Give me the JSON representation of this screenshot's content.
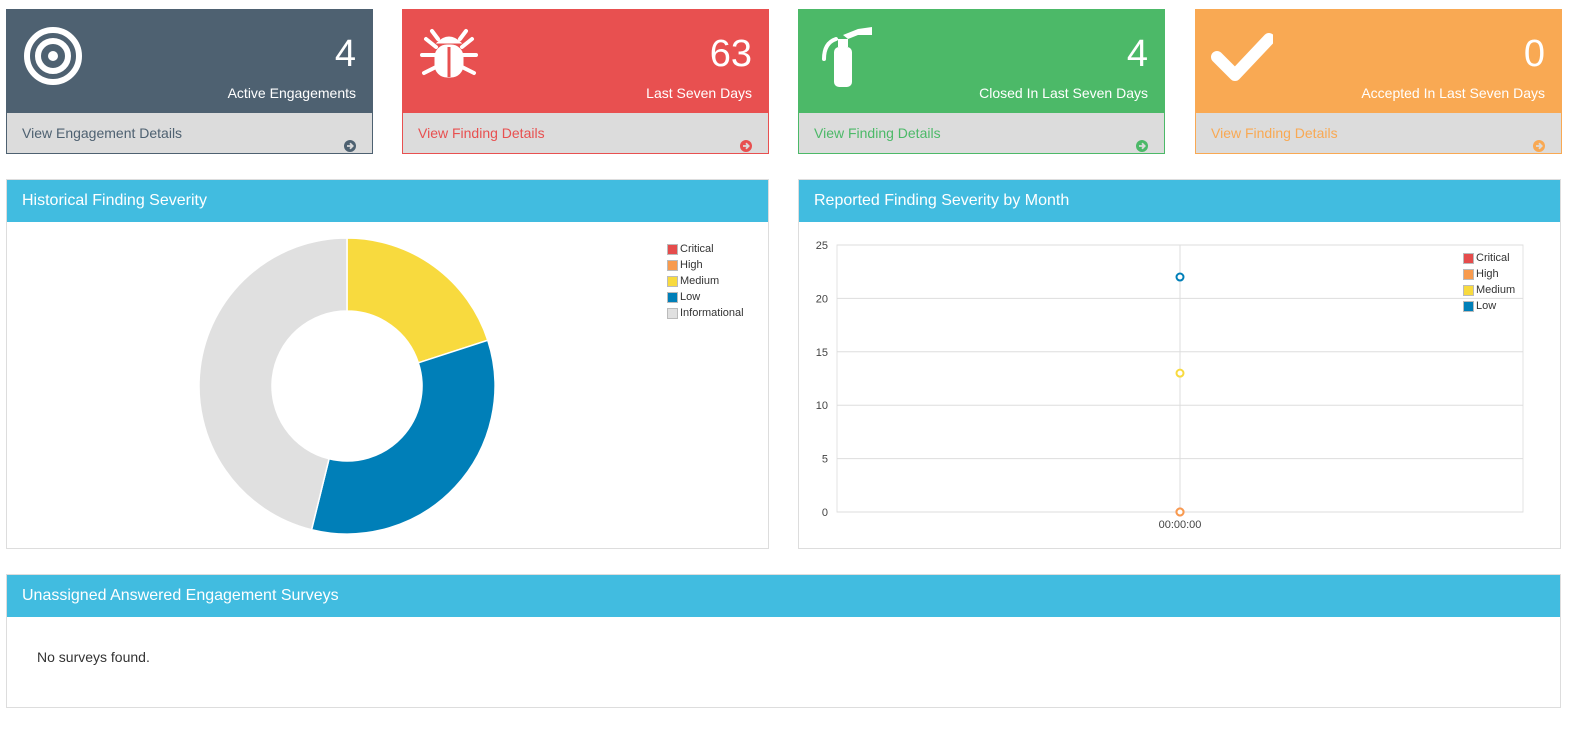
{
  "cards": [
    {
      "name": "active-engagements",
      "number": "4",
      "label": "Active Engagements",
      "link": "View Engagement Details",
      "icon": "target-icon",
      "color": "#4e6171",
      "link_color": "#4e6171"
    },
    {
      "name": "last-seven-days",
      "number": "63",
      "label": "Last Seven Days",
      "link": "View Finding Details",
      "icon": "bug-icon",
      "color": "#e85050",
      "link_color": "#e85050"
    },
    {
      "name": "closed-last-seven-days",
      "number": "4",
      "label": "Closed In Last Seven Days",
      "link": "View Finding Details",
      "icon": "fire-extinguisher-icon",
      "color": "#4cb968",
      "link_color": "#4cb968"
    },
    {
      "name": "accepted-last-seven-days",
      "number": "0",
      "label": "Accepted In Last Seven Days",
      "link": "View Finding Details",
      "icon": "check-icon",
      "color": "#f9a953",
      "link_color": "#f9a953"
    }
  ],
  "historical": {
    "title": "Historical Finding Severity",
    "legend": [
      {
        "label": "Critical",
        "color": "#e54c4c"
      },
      {
        "label": "High",
        "color": "#f89b4e"
      },
      {
        "label": "Medium",
        "color": "#f8da3e"
      },
      {
        "label": "Low",
        "color": "#007fb8"
      },
      {
        "label": "Informational",
        "color": "#e0e0e0"
      }
    ]
  },
  "monthly": {
    "title": "Reported Finding Severity by Month",
    "legend": [
      {
        "label": "Critical",
        "color": "#e54c4c"
      },
      {
        "label": "High",
        "color": "#f89b4e"
      },
      {
        "label": "Medium",
        "color": "#f8da3e"
      },
      {
        "label": "Low",
        "color": "#007fb8"
      }
    ]
  },
  "surveys": {
    "title": "Unassigned Answered Engagement Surveys",
    "empty_text": "No surveys found."
  },
  "chart_data": [
    {
      "type": "pie",
      "title": "Historical Finding Severity",
      "donut": true,
      "categories": [
        "Critical",
        "High",
        "Medium",
        "Low",
        "Informational"
      ],
      "values": [
        0,
        0,
        13,
        22,
        30
      ],
      "colors": [
        "#e54c4c",
        "#f89b4e",
        "#f8da3e",
        "#007fb8",
        "#e0e0e0"
      ],
      "legend": "top-right"
    },
    {
      "type": "scatter",
      "title": "Reported Finding Severity by Month",
      "x": [
        "00:00:00"
      ],
      "ylim": [
        0,
        25
      ],
      "yticks": [
        0,
        5,
        10,
        15,
        20,
        25
      ],
      "series": [
        {
          "name": "Critical",
          "color": "#e54c4c",
          "values": [
            0
          ]
        },
        {
          "name": "High",
          "color": "#f89b4e",
          "values": [
            0
          ]
        },
        {
          "name": "Medium",
          "color": "#f8da3e",
          "values": [
            13
          ]
        },
        {
          "name": "Low",
          "color": "#007fb8",
          "values": [
            22
          ]
        }
      ],
      "grid": true,
      "legend": "top-right"
    }
  ]
}
